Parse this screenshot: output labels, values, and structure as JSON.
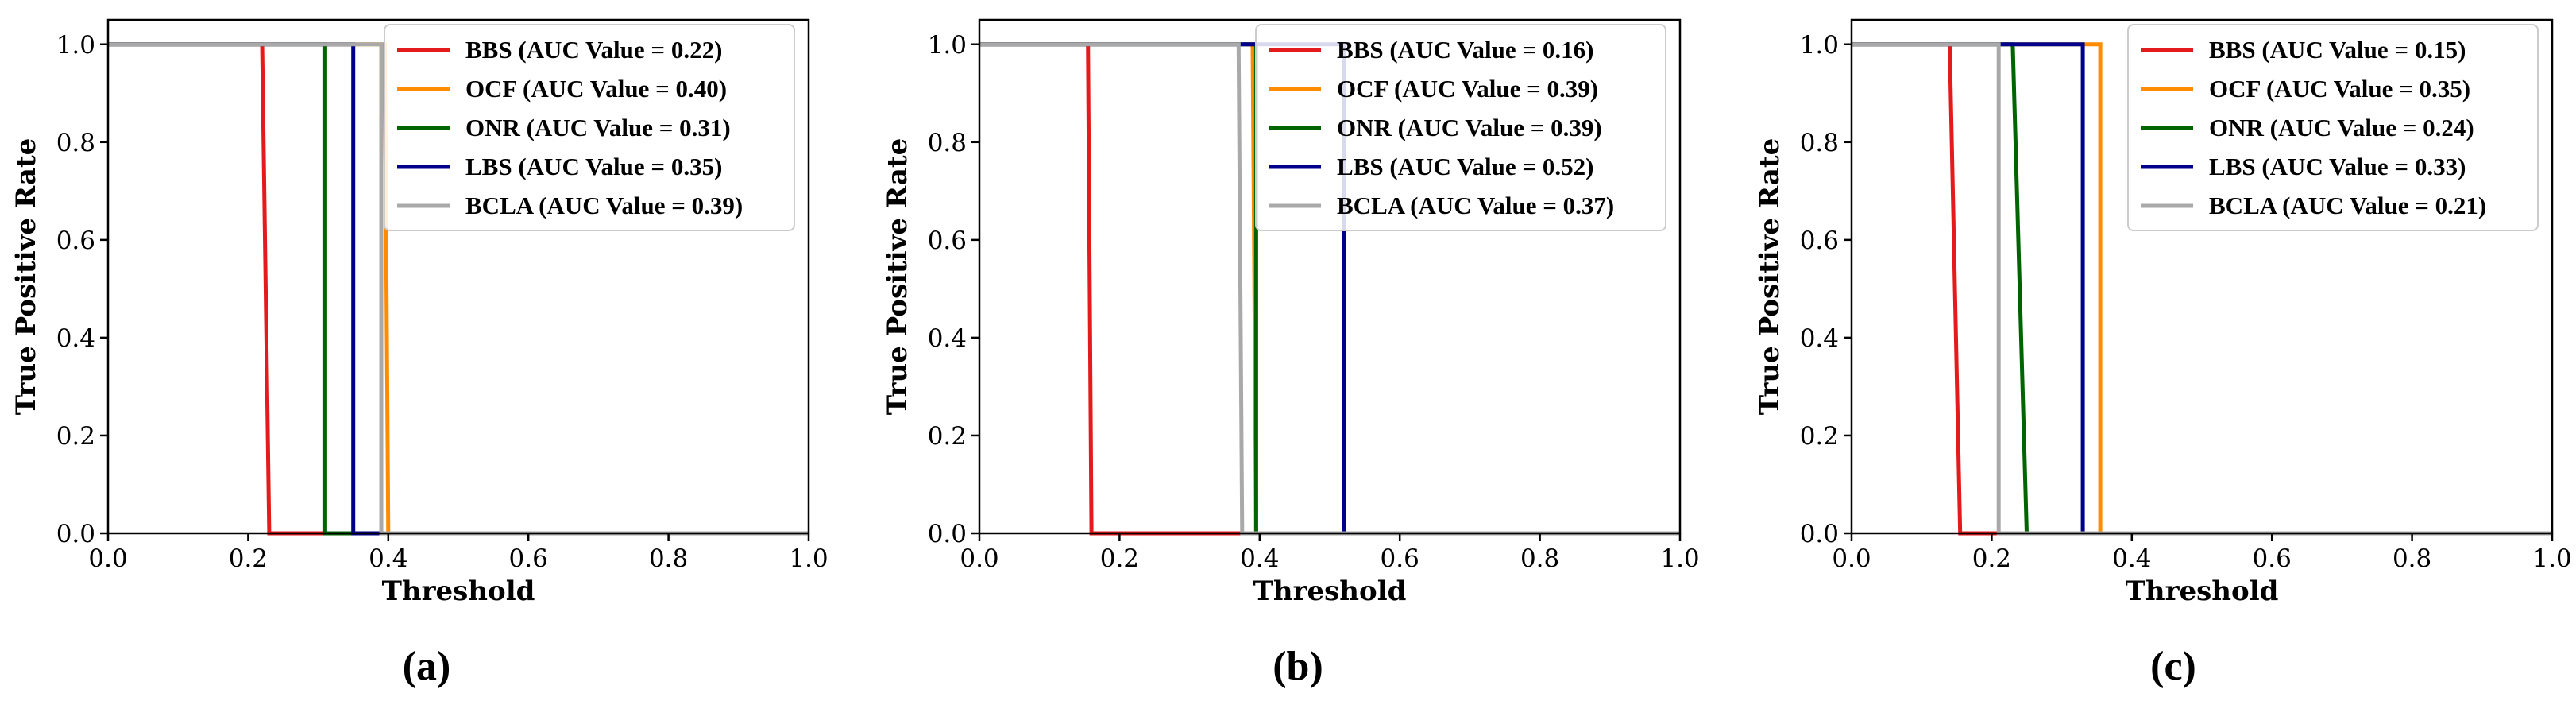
{
  "chart_data": [
    {
      "panel": "(a)",
      "type": "line",
      "xlabel": "Threshold",
      "ylabel": "True Positive Rate",
      "xlim": [
        0.0,
        1.0
      ],
      "ylim": [
        0.0,
        1.05
      ],
      "xticks": [
        "0.0",
        "0.2",
        "0.4",
        "0.6",
        "0.8",
        "1.0"
      ],
      "yticks": [
        "0.0",
        "0.2",
        "0.4",
        "0.6",
        "0.8",
        "1.0"
      ],
      "legend_position": "top-right",
      "series": [
        {
          "name": "BBS",
          "legend": "BBS (AUC Value = 0.22)",
          "color": "#e41a1c",
          "x": [
            0.0,
            0.22,
            0.23,
            1.0
          ],
          "y": [
            1.0,
            1.0,
            0.0,
            0.0
          ]
        },
        {
          "name": "OCF",
          "legend": "OCF (AUC Value = 0.40)",
          "color": "#ff8c00",
          "x": [
            0.0,
            0.395,
            0.4,
            1.0
          ],
          "y": [
            1.0,
            1.0,
            0.0,
            0.0
          ]
        },
        {
          "name": "ONR",
          "legend": "ONR (AUC Value = 0.31)",
          "color": "#006400",
          "x": [
            0.0,
            0.31,
            0.31,
            1.0
          ],
          "y": [
            1.0,
            1.0,
            0.0,
            0.0
          ]
        },
        {
          "name": "LBS",
          "legend": "LBS (AUC Value = 0.35)",
          "color": "#00008b",
          "x": [
            0.0,
            0.35,
            0.35,
            1.0
          ],
          "y": [
            1.0,
            1.0,
            0.0,
            0.0
          ]
        },
        {
          "name": "BCLA",
          "legend": "BCLA (AUC Value = 0.39)",
          "color": "#a9a9a9",
          "x": [
            0.0,
            0.39,
            0.39,
            1.0
          ],
          "y": [
            1.0,
            1.0,
            0.0,
            0.0
          ]
        }
      ]
    },
    {
      "panel": "(b)",
      "type": "line",
      "xlabel": "Threshold",
      "ylabel": "True Positive Rate",
      "xlim": [
        0.0,
        1.0
      ],
      "ylim": [
        0.0,
        1.05
      ],
      "xticks": [
        "0.0",
        "0.2",
        "0.4",
        "0.6",
        "0.8",
        "1.0"
      ],
      "yticks": [
        "0.0",
        "0.2",
        "0.4",
        "0.6",
        "0.8",
        "1.0"
      ],
      "legend_position": "top-right",
      "series": [
        {
          "name": "BBS",
          "legend": "BBS (AUC Value = 0.16)",
          "color": "#e41a1c",
          "x": [
            0.0,
            0.155,
            0.16,
            1.0
          ],
          "y": [
            1.0,
            1.0,
            0.0,
            0.0
          ]
        },
        {
          "name": "OCF",
          "legend": "OCF (AUC Value = 0.39)",
          "color": "#ff8c00",
          "x": [
            0.0,
            0.39,
            0.395,
            1.0
          ],
          "y": [
            1.0,
            1.0,
            0.0,
            0.0
          ]
        },
        {
          "name": "ONR",
          "legend": "ONR (AUC Value = 0.39)",
          "color": "#006400",
          "x": [
            0.0,
            0.395,
            0.395,
            1.0
          ],
          "y": [
            1.0,
            1.0,
            0.0,
            0.0
          ]
        },
        {
          "name": "LBS",
          "legend": "LBS (AUC Value = 0.52)",
          "color": "#00008b",
          "x": [
            0.0,
            0.52,
            0.52,
            1.0
          ],
          "y": [
            1.0,
            1.0,
            0.0,
            0.0
          ]
        },
        {
          "name": "BCLA",
          "legend": "BCLA (AUC Value = 0.37)",
          "color": "#a9a9a9",
          "x": [
            0.0,
            0.37,
            0.375,
            1.0
          ],
          "y": [
            1.0,
            1.0,
            0.0,
            0.0
          ]
        }
      ]
    },
    {
      "panel": "(c)",
      "type": "line",
      "xlabel": "Threshold",
      "ylabel": "True Positive Rate",
      "xlim": [
        0.0,
        1.0
      ],
      "ylim": [
        0.0,
        1.05
      ],
      "xticks": [
        "0.0",
        "0.2",
        "0.4",
        "0.6",
        "0.8",
        "1.0"
      ],
      "yticks": [
        "0.0",
        "0.2",
        "0.4",
        "0.6",
        "0.8",
        "1.0"
      ],
      "legend_position": "top-right",
      "series": [
        {
          "name": "BBS",
          "legend": "BBS (AUC Value = 0.15)",
          "color": "#e41a1c",
          "x": [
            0.0,
            0.14,
            0.155,
            1.0
          ],
          "y": [
            1.0,
            1.0,
            0.0,
            0.0
          ]
        },
        {
          "name": "OCF",
          "legend": "OCF (AUC Value = 0.35)",
          "color": "#ff8c00",
          "x": [
            0.0,
            0.355,
            0.355,
            1.0
          ],
          "y": [
            1.0,
            1.0,
            0.0,
            0.0
          ]
        },
        {
          "name": "ONR",
          "legend": "ONR (AUC Value = 0.24)",
          "color": "#006400",
          "x": [
            0.0,
            0.23,
            0.25,
            1.0
          ],
          "y": [
            1.0,
            1.0,
            0.0,
            0.0
          ]
        },
        {
          "name": "LBS",
          "legend": "LBS (AUC Value = 0.33)",
          "color": "#00008b",
          "x": [
            0.0,
            0.33,
            0.33,
            1.0
          ],
          "y": [
            1.0,
            1.0,
            0.0,
            0.0
          ]
        },
        {
          "name": "BCLA",
          "legend": "BCLA (AUC Value = 0.21)",
          "color": "#a9a9a9",
          "x": [
            0.0,
            0.21,
            0.21,
            1.0
          ],
          "y": [
            1.0,
            1.0,
            0.0,
            0.0
          ]
        }
      ]
    }
  ]
}
